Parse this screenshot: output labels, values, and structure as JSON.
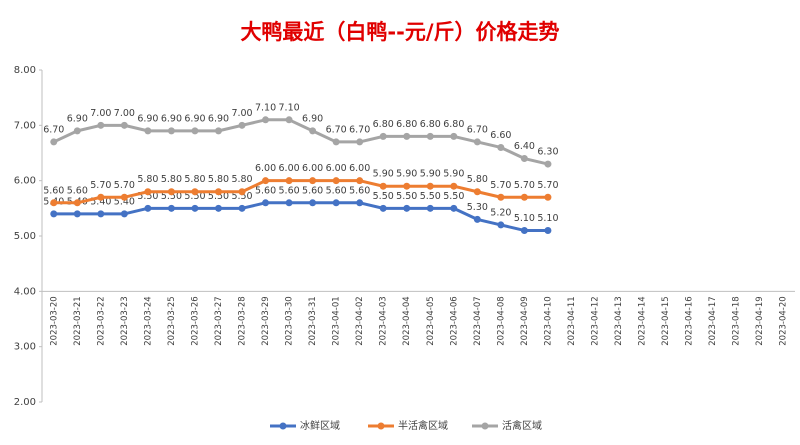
{
  "chart_data": {
    "type": "line",
    "title": "大鸭最近（白鸭--元/斤）价格走势",
    "categories": [
      "2023-03-20",
      "2023-03-21",
      "2023-03-22",
      "2023-03-23",
      "2023-03-24",
      "2023-03-25",
      "2023-03-26",
      "2023-03-27",
      "2023-03-28",
      "2023-03-29",
      "2023-03-30",
      "2023-03-31",
      "2023-04-01",
      "2023-04-02",
      "2023-04-03",
      "2023-04-04",
      "2023-04-05",
      "2023-04-06",
      "2023-04-07",
      "2023-04-08",
      "2023-04-09",
      "2023-04-10",
      "2023-04-11",
      "2023-04-12",
      "2023-04-13",
      "2023-04-14",
      "2023-04-15",
      "2023-04-16",
      "2023-04-17",
      "2023-04-18",
      "2023-04-19",
      "2023-04-20"
    ],
    "series": [
      {
        "name": "冰鲜区域",
        "color": "#4472c4",
        "values": [
          5.4,
          5.4,
          5.4,
          5.4,
          5.5,
          5.5,
          5.5,
          5.5,
          5.5,
          5.6,
          5.6,
          5.6,
          5.6,
          5.6,
          5.5,
          5.5,
          5.5,
          5.5,
          5.3,
          5.2,
          5.1,
          5.1,
          null,
          null,
          null,
          null,
          null,
          null,
          null,
          null,
          null,
          null
        ],
        "value_labels": [
          "5.40",
          "5.40",
          "5.40",
          "5.40",
          "5.50",
          "5.50",
          "5.50",
          "5.50",
          "5.50",
          "5.60",
          "5.60",
          "5.60",
          "5.60",
          "5.60",
          "5.50",
          "5.50",
          "5.50",
          "5.50",
          "5.30",
          "5.20",
          "5.10",
          "5.10",
          null,
          null,
          null,
          null,
          null,
          null,
          null,
          null,
          null,
          null
        ]
      },
      {
        "name": "半活禽区域",
        "color": "#ed7d31",
        "values": [
          5.6,
          5.6,
          5.7,
          5.7,
          5.8,
          5.8,
          5.8,
          5.8,
          5.8,
          6.0,
          6.0,
          6.0,
          6.0,
          6.0,
          5.9,
          5.9,
          5.9,
          5.9,
          5.8,
          5.7,
          5.7,
          5.7,
          null,
          null,
          null,
          null,
          null,
          null,
          null,
          null,
          null,
          null
        ],
        "value_labels": [
          "5.60",
          "5.60",
          "5.70",
          "5.70",
          "5.80",
          "5.80",
          "5.80",
          "5.80",
          "5.80",
          "6.00",
          "6.00",
          "6.00",
          "6.00",
          "6.00",
          "5.90",
          "5.90",
          "5.90",
          "5.90",
          "5.80",
          "5.70",
          "5.70",
          "5.70",
          null,
          null,
          null,
          null,
          null,
          null,
          null,
          null,
          null,
          null
        ]
      },
      {
        "name": "活禽区域",
        "color": "#a5a5a5",
        "values": [
          6.7,
          6.9,
          7.0,
          7.0,
          6.9,
          6.9,
          6.9,
          6.9,
          7.0,
          7.1,
          7.1,
          6.9,
          6.7,
          6.7,
          6.8,
          6.8,
          6.8,
          6.8,
          6.7,
          6.6,
          6.4,
          6.3,
          null,
          null,
          null,
          null,
          null,
          null,
          null,
          null,
          null,
          null
        ],
        "value_labels": [
          "6.70",
          "6.90",
          "7.00",
          "7.00",
          "6.90",
          "6.90",
          "6.90",
          "6.90",
          "7.00",
          "7.10",
          "7.10",
          "6.90",
          "6.70",
          "6.70",
          "6.80",
          "6.80",
          "6.80",
          "6.80",
          "6.70",
          "6.60",
          "6.40",
          "6.30",
          null,
          null,
          null,
          null,
          null,
          null,
          null,
          null,
          null,
          null
        ]
      }
    ],
    "ylim": [
      2,
      8
    ],
    "yticks": [
      {
        "value": 2,
        "label": "2.00"
      },
      {
        "value": 3,
        "label": "3.00"
      },
      {
        "value": 4,
        "label": "4.00"
      },
      {
        "value": 5,
        "label": "5.00"
      },
      {
        "value": 6,
        "label": "6.00"
      },
      {
        "value": 7,
        "label": "7.00"
      },
      {
        "value": 8,
        "label": "8.00"
      }
    ],
    "x_axis_crosses": 4,
    "grid": false,
    "legend": "bottom"
  }
}
